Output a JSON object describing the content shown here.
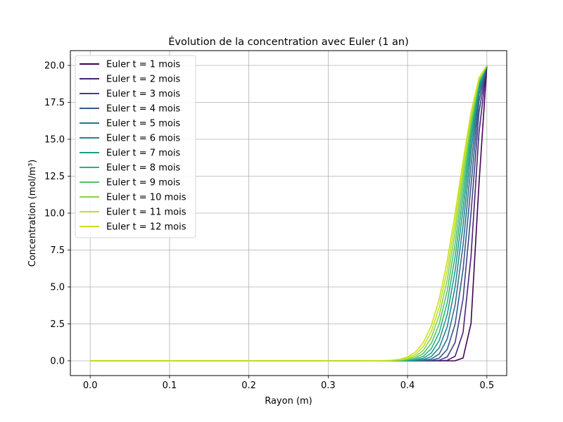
{
  "chart_data": {
    "type": "line",
    "title": "Évolution de la concentration avec Euler (1 an)",
    "xlabel": "Rayon (m)",
    "ylabel": "Concentration (mol/m³)",
    "xlim": [
      -0.025,
      0.525
    ],
    "ylim": [
      -1.0,
      21.0
    ],
    "xticks": [
      0.0,
      0.1,
      0.2,
      0.3,
      0.4,
      0.5
    ],
    "xtick_labels": [
      "0.0",
      "0.1",
      "0.2",
      "0.3",
      "0.4",
      "0.5"
    ],
    "yticks": [
      0.0,
      2.5,
      5.0,
      7.5,
      10.0,
      12.5,
      15.0,
      17.5,
      20.0
    ],
    "ytick_labels": [
      "0.0",
      "2.5",
      "5.0",
      "7.5",
      "10.0",
      "12.5",
      "15.0",
      "17.5",
      "20.0"
    ],
    "grid": true,
    "legend_position": "upper-left",
    "boundary_value": 20.0,
    "x": [
      0.0,
      0.01,
      0.02,
      0.03,
      0.04,
      0.05,
      0.06,
      0.07,
      0.08,
      0.09,
      0.1,
      0.11,
      0.12,
      0.13,
      0.14,
      0.15,
      0.16,
      0.17,
      0.18,
      0.19,
      0.2,
      0.21,
      0.22,
      0.23,
      0.24,
      0.25,
      0.26,
      0.27,
      0.28,
      0.29,
      0.3,
      0.31,
      0.32,
      0.33,
      0.34,
      0.35,
      0.36,
      0.37,
      0.38,
      0.39,
      0.4,
      0.41,
      0.42,
      0.43,
      0.44,
      0.45,
      0.46,
      0.47,
      0.48,
      0.49,
      0.5
    ],
    "series": [
      {
        "name": "Euler t = 1 mois",
        "color": "#440154",
        "length_scale": 0.0139
      },
      {
        "name": "Euler t = 2 mois",
        "color": "#482173",
        "length_scale": 0.0196
      },
      {
        "name": "Euler t = 3 mois",
        "color": "#433e85",
        "length_scale": 0.024
      },
      {
        "name": "Euler t = 4 mois",
        "color": "#38588c",
        "length_scale": 0.0277
      },
      {
        "name": "Euler t = 5 mois",
        "color": "#2d708e",
        "length_scale": 0.031
      },
      {
        "name": "Euler t = 6 mois",
        "color": "#25858e",
        "length_scale": 0.034
      },
      {
        "name": "Euler t = 7 mois",
        "color": "#1e9b8a",
        "length_scale": 0.0367
      },
      {
        "name": "Euler t = 8 mois",
        "color": "#2ab07f",
        "length_scale": 0.0392
      },
      {
        "name": "Euler t = 9 mois",
        "color": "#52c569",
        "length_scale": 0.0416
      },
      {
        "name": "Euler t = 10 mois",
        "color": "#86d549",
        "length_scale": 0.0439
      },
      {
        "name": "Euler t = 11 mois",
        "color": "#c2df23",
        "length_scale": 0.046
      },
      {
        "name": "Euler t = 12 mois",
        "color": "#cddf1f",
        "length_scale": 0.048
      }
    ]
  }
}
